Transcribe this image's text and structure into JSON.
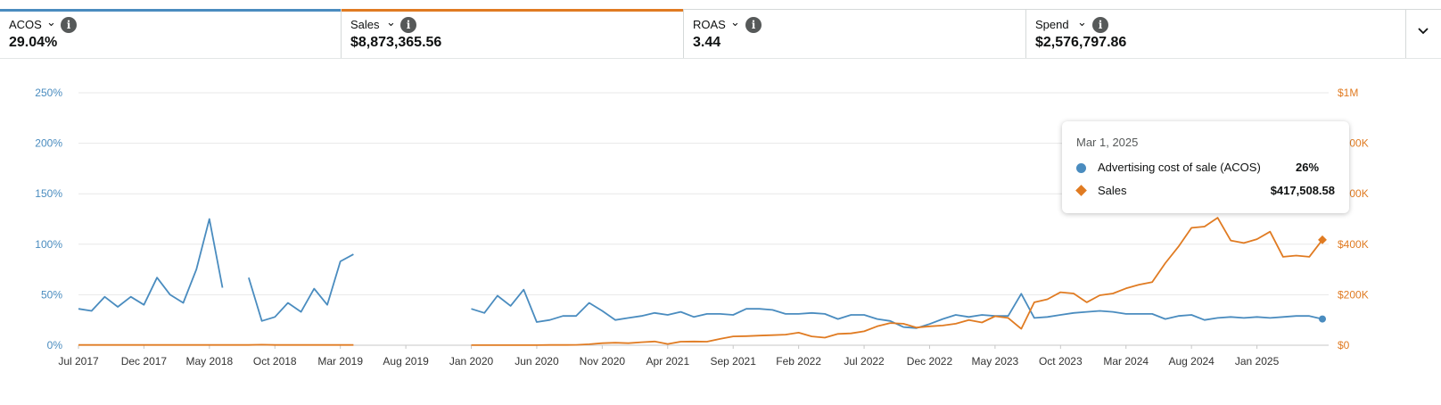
{
  "metrics": [
    {
      "label": "ACOS",
      "value": "29.04%",
      "accent": "#4a8cbf"
    },
    {
      "label": "Sales",
      "value": "$8,873,365.56",
      "accent": "#e07b22"
    },
    {
      "label": "ROAS",
      "value": "3.44",
      "accent": ""
    },
    {
      "label": "Spend",
      "value": "$2,576,797.86",
      "accent": ""
    }
  ],
  "icons": {
    "dropdown": "chevron-down-icon",
    "info": "info-icon",
    "expand": "chevron-down-icon"
  },
  "tooltip": {
    "date": "Mar 1, 2025",
    "rows": [
      {
        "name": "Advertising cost of sale (ACOS)",
        "value": "26%",
        "color": "#4a8cbf"
      },
      {
        "name": "Sales",
        "value": "$417,508.58",
        "color": "#e07b22"
      }
    ]
  },
  "chart_data": {
    "type": "line",
    "x_tick_labels": [
      "Jul 2017",
      "Dec 2017",
      "May 2018",
      "Oct 2018",
      "Mar 2019",
      "Aug 2019",
      "Jan 2020",
      "Jun 2020",
      "Nov 2020",
      "Apr 2021",
      "Sep 2021",
      "Feb 2022",
      "Jul 2022",
      "Dec 2022",
      "May 2023",
      "Oct 2023",
      "Mar 2024",
      "Aug 2024",
      "Jan 2025"
    ],
    "x_start": "Jul 2017",
    "x_end": "Mar 2025",
    "x_interval": "monthly",
    "y_left": {
      "ticks": [
        "0%",
        "50%",
        "100%",
        "150%",
        "200%",
        "250%"
      ],
      "range": [
        0,
        250
      ],
      "unit": "%",
      "color": "#4a8cbf"
    },
    "y_right": {
      "ticks": [
        "$0",
        "$200K",
        "$400K",
        "$600K",
        "$800K",
        "$1M"
      ],
      "range": [
        0,
        1000000
      ],
      "unit": "$",
      "color": "#e07b22"
    },
    "grid": true,
    "series": [
      {
        "name": "Advertising cost of sale (ACOS)",
        "axis": "left",
        "color": "#4a8cbf",
        "marker": "circle",
        "values": [
          36,
          34,
          48,
          38,
          48,
          40,
          67,
          50,
          42,
          75,
          125,
          57,
          null,
          67,
          24,
          28,
          42,
          33,
          56,
          40,
          83,
          90,
          null,
          null,
          null,
          null,
          null,
          null,
          null,
          null,
          36,
          32,
          49,
          39,
          55,
          23,
          25,
          29,
          29,
          42,
          34,
          25,
          27,
          29,
          32,
          30,
          33,
          28,
          31,
          31,
          30,
          36,
          36,
          35,
          31,
          31,
          32,
          31,
          26,
          30,
          30,
          26,
          24,
          18,
          17,
          21,
          26,
          30,
          28,
          30,
          29,
          29,
          51,
          27,
          28,
          30,
          32,
          33,
          34,
          33,
          31,
          31,
          31,
          26,
          29,
          30,
          25,
          27,
          28,
          27,
          28,
          27,
          28,
          29,
          29,
          26
        ]
      },
      {
        "name": "Sales",
        "axis": "right",
        "color": "#e07b22",
        "marker": "diamond",
        "values": [
          1000,
          1000,
          1000,
          1000,
          1000,
          1000,
          1000,
          1000,
          1000,
          1000,
          1000,
          1000,
          1000,
          1000,
          2000,
          1000,
          1000,
          1000,
          1000,
          1000,
          1000,
          1000,
          null,
          null,
          null,
          null,
          null,
          null,
          null,
          null,
          500,
          500,
          500,
          500,
          500,
          500,
          1000,
          1000,
          1500,
          4000,
          8000,
          10000,
          8000,
          12000,
          15000,
          5000,
          14000,
          15000,
          14000,
          25000,
          35000,
          36000,
          38000,
          40000,
          42000,
          50000,
          35000,
          30000,
          45000,
          47000,
          55000,
          75000,
          88000,
          85000,
          70000,
          75000,
          78000,
          85000,
          100000,
          90000,
          115000,
          108000,
          65000,
          170000,
          182000,
          210000,
          205000,
          170000,
          198000,
          205000,
          225000,
          240000,
          250000,
          325000,
          390000,
          465000,
          470000,
          505000,
          415000,
          405000,
          420000,
          450000,
          350000,
          355000,
          350000,
          417508.58
        ]
      }
    ]
  }
}
